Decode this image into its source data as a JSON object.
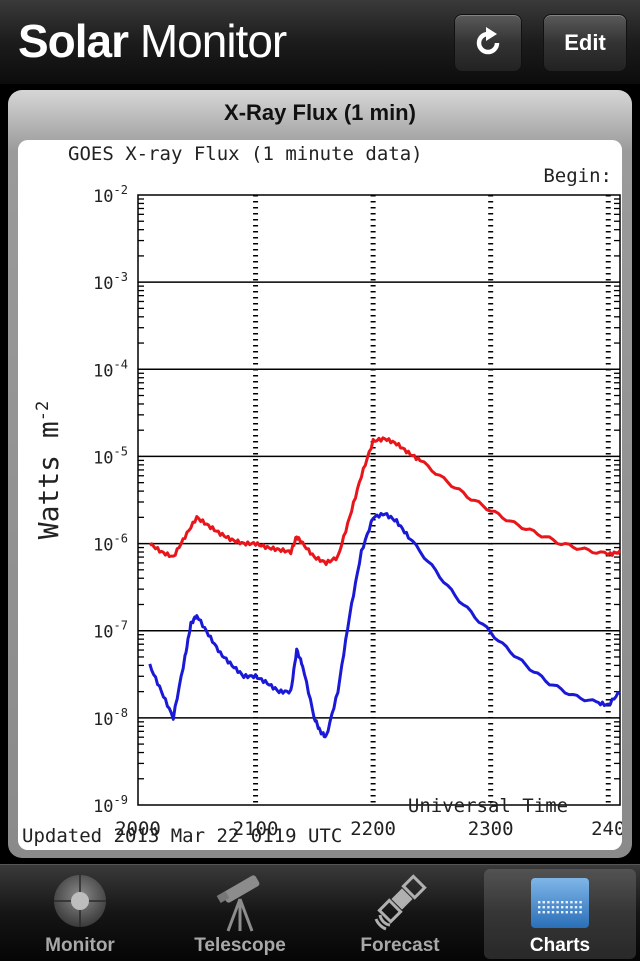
{
  "navbar": {
    "title_bold": "Solar",
    "title_light": "Monitor",
    "edit_label": "Edit",
    "refresh_icon": "refresh-icon"
  },
  "panel": {
    "title": "X-Ray Flux (1 min)"
  },
  "chart_data": {
    "type": "line",
    "title": "GOES X-ray Flux (1 minute data)",
    "top_right_label": "Begin:",
    "xlabel": "Universal Time",
    "ylabel": "Watts m",
    "ylabel_sup": "-2",
    "footer": "Updated 2013 Mar 22 0119 UTC",
    "y_log_scale": true,
    "ylim": [
      1e-09,
      0.01
    ],
    "xlim": [
      2000,
      2410
    ],
    "x_ticks": [
      "2000",
      "2100",
      "2200",
      "2300",
      "240"
    ],
    "y_tick_base": "10",
    "y_tick_exponents": [
      "-9",
      "-8",
      "-7",
      "-6",
      "-5",
      "-4",
      "-3",
      "-2"
    ],
    "grid": true,
    "series": [
      {
        "color": "#e8161b",
        "x": [
          2010,
          2020,
          2030,
          2040,
          2050,
          2060,
          2070,
          2080,
          2090,
          2100,
          2110,
          2120,
          2130,
          2135,
          2140,
          2150,
          2160,
          2170,
          2180,
          2190,
          2200,
          2210,
          2220,
          2230,
          2240,
          2260,
          2280,
          2300,
          2320,
          2340,
          2360,
          2380,
          2400,
          2410
        ],
        "y": [
          1e-06,
          8e-07,
          7e-07,
          1.2e-06,
          2e-06,
          1.6e-06,
          1.3e-06,
          1.1e-06,
          1e-06,
          1e-06,
          9e-07,
          8.5e-07,
          8e-07,
          1.2e-06,
          1e-06,
          7e-07,
          6e-07,
          7e-07,
          2e-06,
          6e-06,
          1.5e-05,
          1.6e-05,
          1.4e-05,
          1.1e-05,
          9e-06,
          5.5e-06,
          3.5e-06,
          2.4e-06,
          1.7e-06,
          1.3e-06,
          1e-06,
          8.5e-07,
          7.5e-07,
          8e-07
        ]
      },
      {
        "color": "#1a1ad6",
        "x": [
          2010,
          2020,
          2030,
          2040,
          2045,
          2050,
          2060,
          2070,
          2080,
          2090,
          2100,
          2110,
          2120,
          2130,
          2135,
          2140,
          2150,
          2155,
          2160,
          2170,
          2180,
          2190,
          2200,
          2210,
          2220,
          2230,
          2250,
          2270,
          2290,
          2310,
          2330,
          2350,
          2370,
          2390,
          2400,
          2410
        ],
        "y": [
          4e-08,
          2e-08,
          1e-08,
          5e-08,
          1.2e-07,
          1.5e-07,
          9e-08,
          5.5e-08,
          4e-08,
          3e-08,
          3e-08,
          2.5e-08,
          2e-08,
          2e-08,
          6e-08,
          4e-08,
          1e-08,
          7e-09,
          6e-09,
          2e-08,
          1.5e-07,
          8e-07,
          2e-06,
          2.2e-06,
          1.8e-06,
          1.2e-06,
          5.5e-07,
          2.5e-07,
          1.3e-07,
          7e-08,
          4e-08,
          2.5e-08,
          1.8e-08,
          1.5e-08,
          1.4e-08,
          2e-08
        ]
      }
    ]
  },
  "tabs": [
    {
      "label": "Monitor",
      "icon": "sun-icon",
      "active": false
    },
    {
      "label": "Telescope",
      "icon": "telescope-icon",
      "active": false
    },
    {
      "label": "Forecast",
      "icon": "satellite-icon",
      "active": false
    },
    {
      "label": "Charts",
      "icon": "chart-grid-icon",
      "active": true
    }
  ]
}
